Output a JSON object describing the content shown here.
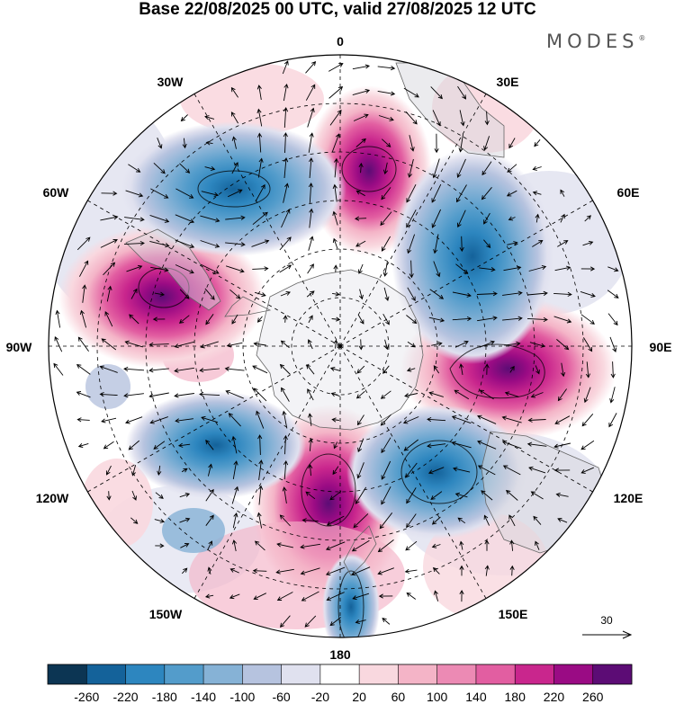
{
  "title": "Base 22/08/2025 00 UTC, valid 27/08/2025 12 UTC",
  "brand": "MODES",
  "brand_mark": "®",
  "longitude_labels": [
    "0",
    "30E",
    "60E",
    "90E",
    "120E",
    "150E",
    "180",
    "150W",
    "120W",
    "90W",
    "60W",
    "30W"
  ],
  "reference_vector": {
    "value": "30"
  },
  "colorbar": {
    "colors": [
      "#0c3553",
      "#14629a",
      "#2d86bf",
      "#539ccb",
      "#86b2d6",
      "#b6c3df",
      "#e0e1ef",
      "#ffffff",
      "#f9d8df",
      "#f4b4c7",
      "#ec8ab4",
      "#e25ea1",
      "#c9268d",
      "#9a0b84",
      "#5c0c75"
    ],
    "tick_labels": [
      "-260",
      "-220",
      "-180",
      "-140",
      "-100",
      "-60",
      "-20",
      "20",
      "60",
      "100",
      "140",
      "180",
      "220",
      "260"
    ]
  },
  "anomaly_centers": [
    {
      "name": "positive-center-0",
      "sign": "+",
      "lon": 6,
      "colat": 25
    },
    {
      "name": "positive-center-88w",
      "sign": "+",
      "lon": -72,
      "colat": 36
    },
    {
      "name": "positive-center-92e",
      "sign": "+",
      "lon": 95,
      "colat": 28
    },
    {
      "name": "positive-center-178w",
      "sign": "+",
      "lon": -178,
      "colat": 22
    },
    {
      "name": "negative-center-40w",
      "sign": "-",
      "lon": -35,
      "colat": 33
    },
    {
      "name": "negative-center-55e",
      "sign": "-",
      "lon": 55,
      "colat": 33
    },
    {
      "name": "negative-center-135e",
      "sign": "-",
      "lon": 140,
      "colat": 28
    },
    {
      "name": "negative-center-115w",
      "sign": "-",
      "lon": -115,
      "colat": 30
    },
    {
      "name": "negative-center-180-edge",
      "sign": "-",
      "lon": 180,
      "colat": 41
    }
  ]
}
